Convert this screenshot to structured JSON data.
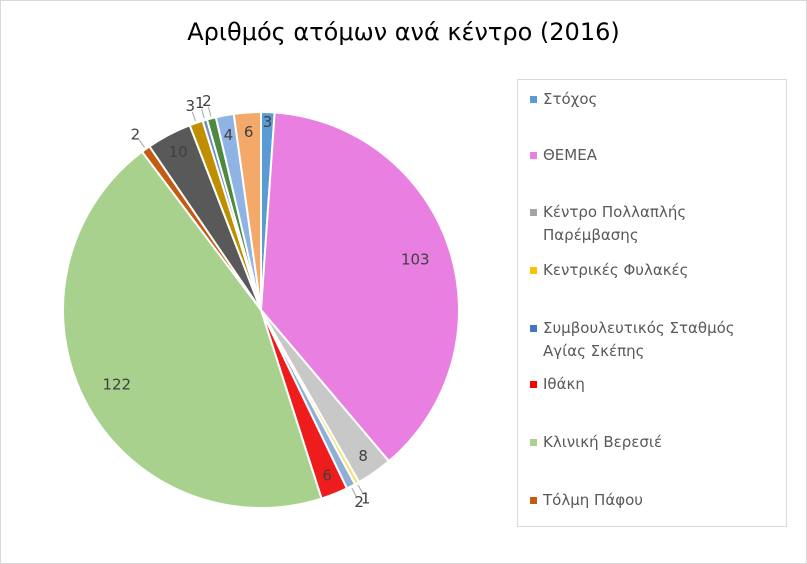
{
  "chart_data": {
    "type": "pie",
    "title": "Αριθμός ατόμων ανά κέντρο (2016)",
    "slices": [
      {
        "label": "Στόχος",
        "value": 3,
        "color": "#5b9bd5"
      },
      {
        "label": "ΘΕΜΕΑ",
        "value": 103,
        "color": "#e97fe0"
      },
      {
        "label": "",
        "value": 8,
        "color": "#c8c8c8"
      },
      {
        "label": "",
        "value": 1,
        "color": "#f7e27a"
      },
      {
        "label": "",
        "value": 2,
        "color": "#8fafd6"
      },
      {
        "label": "Ιθάκη",
        "value": 6,
        "color": "#ee1c1c"
      },
      {
        "label": "Κλινική Βερεσιέ",
        "value": 122,
        "color": "#a9d18e"
      },
      {
        "label": "Τόλμη Πάφου",
        "value": 2,
        "color": "#c55a11"
      },
      {
        "label": "",
        "value": 10,
        "color": "#595959"
      },
      {
        "label": "",
        "value": 3,
        "color": "#bf8f00"
      },
      {
        "label": "",
        "value": 1,
        "color": "#6f8fbf"
      },
      {
        "label": "",
        "value": 2,
        "color": "#4e8a3e"
      },
      {
        "label": "",
        "value": 4,
        "color": "#8fb4e3"
      },
      {
        "label": "",
        "value": 6,
        "color": "#f4a96a"
      }
    ],
    "legend_position": "right"
  },
  "legend": [
    {
      "label": "Στόχος",
      "color": "#5b9bd5"
    },
    {
      "label": "ΘΕΜΕΑ",
      "color": "#e97fe0"
    },
    {
      "label": "Κέντρο Πολλαπλής Παρέμβασης",
      "color": "#a5a5a5"
    },
    {
      "label": "Κεντρικές Φυλακές",
      "color": "#ffc000"
    },
    {
      "label": "Συμβουλευτικός Σταθμός Αγίας Σκέπης",
      "color": "#4472c4"
    },
    {
      "label": "Ιθάκη",
      "color": "#ff0000"
    },
    {
      "label": "Κλινική Βερεσιέ",
      "color": "#a9d18e"
    },
    {
      "label": "Τόλμη Πάφου",
      "color": "#c55a11"
    }
  ]
}
